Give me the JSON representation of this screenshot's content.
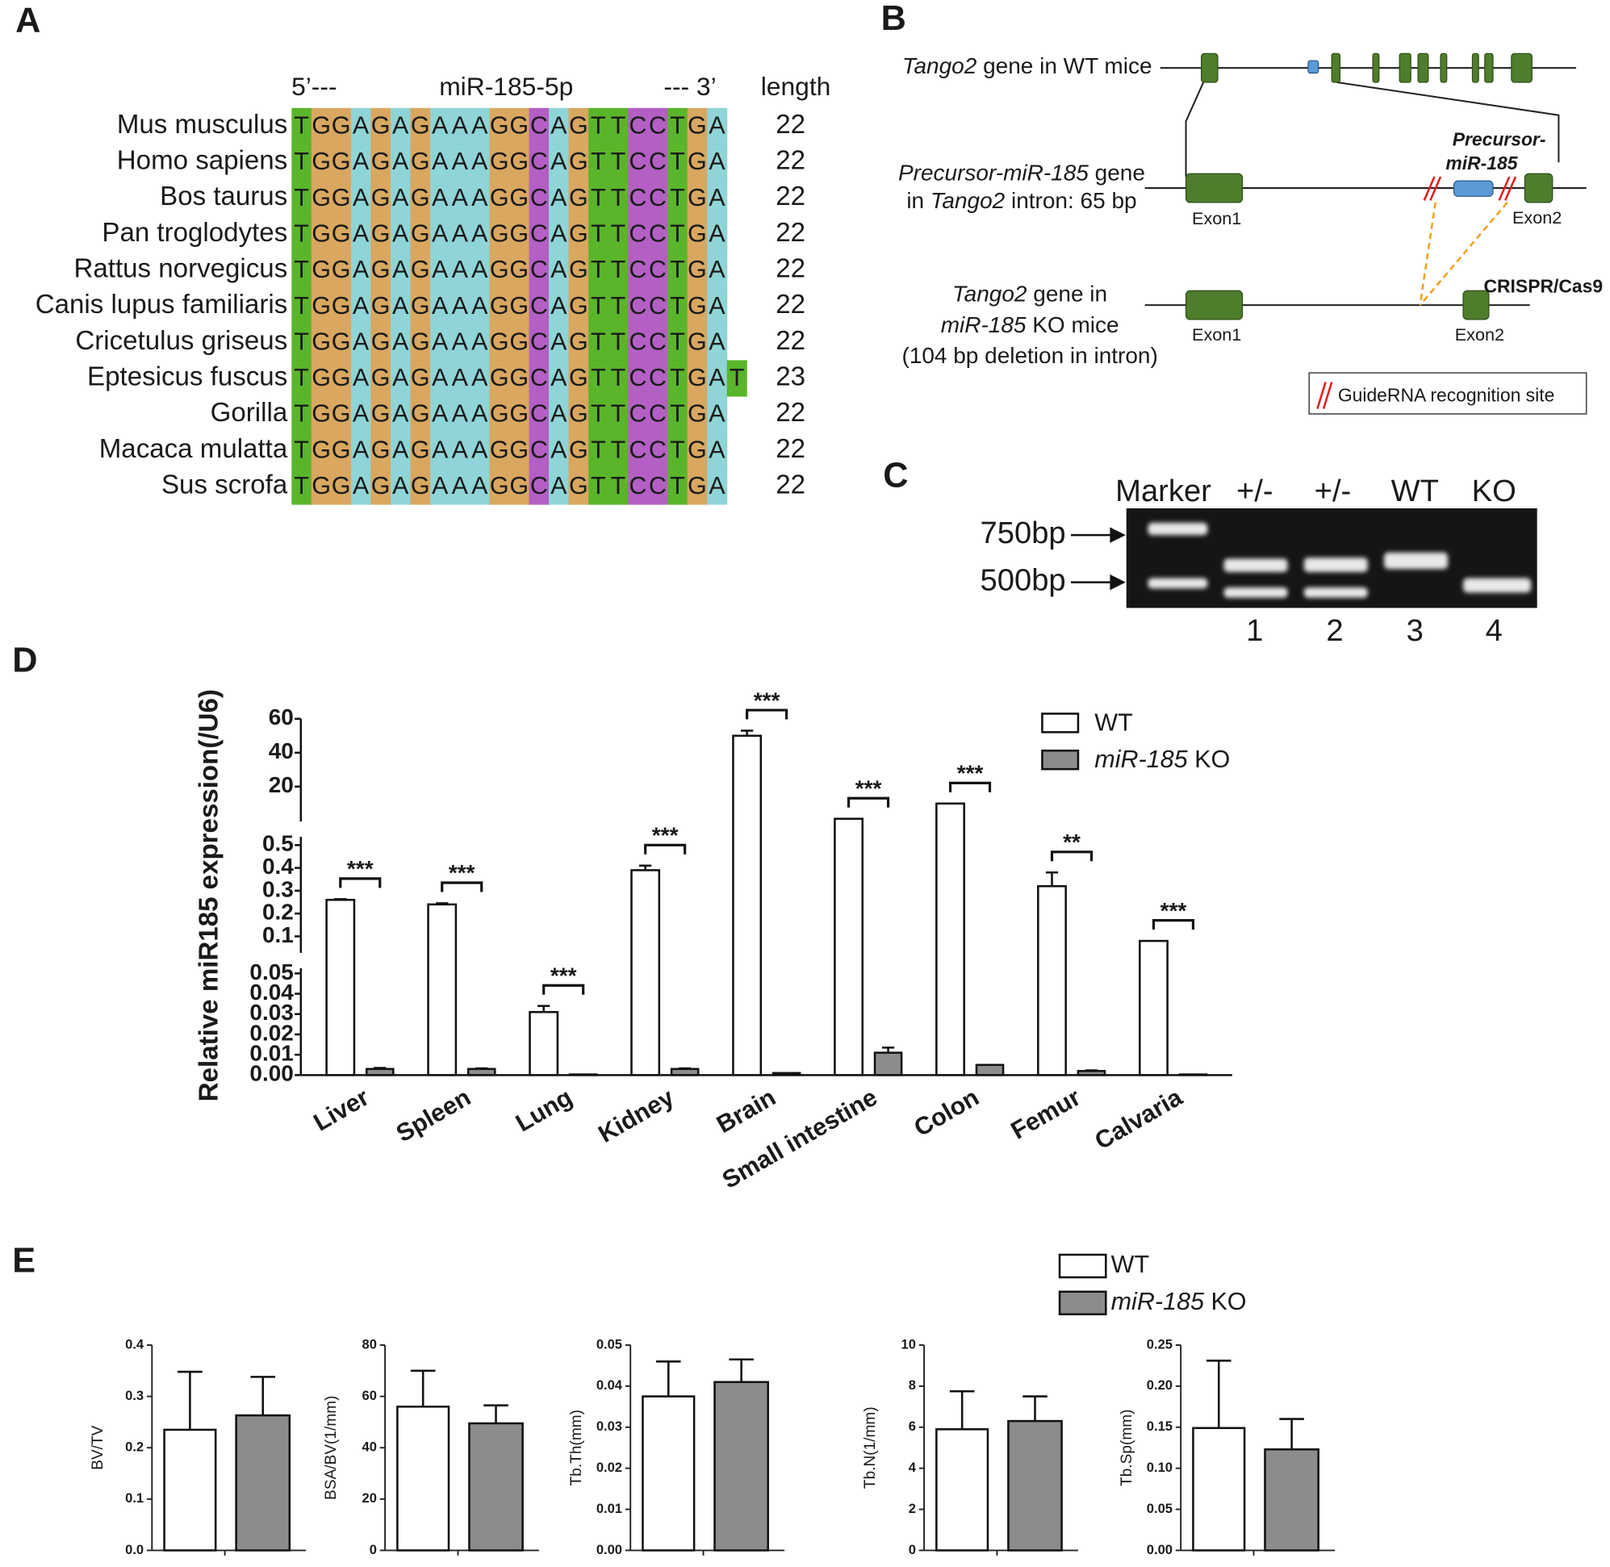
{
  "panel_labels": [
    "A",
    "B",
    "C",
    "D",
    "E"
  ],
  "alignment": {
    "header": [
      "5’---",
      "miR-185-5p",
      "--- 3’",
      "length"
    ],
    "base_colors": {
      "T": "#5ab52a",
      "G": "#d9a760",
      "A": "#8fd4d6",
      "C": "#b35fc4"
    },
    "rows": [
      {
        "species": "Mus musculus",
        "sequence": "TGGAGAGAAAGGCAGTTCCTGA",
        "length": 22
      },
      {
        "species": "Homo sapiens",
        "sequence": "TGGAGAGAAAGGCAGTTCCTGA",
        "length": 22
      },
      {
        "species": "Bos taurus",
        "sequence": "TGGAGAGAAAGGCAGTTCCTGA",
        "length": 22
      },
      {
        "species": "Pan troglodytes",
        "sequence": "TGGAGAGAAAGGCAGTTCCTGA",
        "length": 22
      },
      {
        "species": "Rattus norvegicus",
        "sequence": "TGGAGAGAAAGGCAGTTCCTGA",
        "length": 22
      },
      {
        "species": "Canis lupus familiaris",
        "sequence": "TGGAGAGAAAGGCAGTTCCTGA",
        "length": 22
      },
      {
        "species": "Cricetulus griseus",
        "sequence": "TGGAGAGAAAGGCAGTTCCTGA",
        "length": 22
      },
      {
        "species": "Eptesicus fuscus",
        "sequence": "TGGAGAGAAAGGCAGTTCCTGAT",
        "length": 23
      },
      {
        "species": "Gorilla",
        "sequence": "TGGAGAGAAAGGCAGTTCCTGA",
        "length": 22
      },
      {
        "species": "Macaca mulatta",
        "sequence": "TGGAGAGAAAGGCAGTTCCTGA",
        "length": 22
      },
      {
        "species": "Sus scrofa",
        "sequence": "TGGAGAGAAAGGCAGTTCCTGA",
        "length": 22
      }
    ]
  },
  "diagram": {
    "wt_label": [
      [
        {
          "text": "Tango2",
          "italic": true
        },
        {
          "text": " gene in WT mice"
        }
      ]
    ],
    "precursor_label": [
      [
        {
          "text": "Precursor-miR-185",
          "italic": true
        },
        {
          "text": " gene"
        }
      ],
      [
        {
          "text": "in "
        },
        {
          "text": "Tango2",
          "italic": true
        },
        {
          "text": " intron: 65 bp"
        }
      ]
    ],
    "ko_label": [
      [
        {
          "text": "Tango2",
          "italic": true
        },
        {
          "text": " gene in"
        }
      ],
      [
        {
          "text": "miR-185",
          "italic": true
        },
        {
          "text": " KO mice"
        }
      ],
      [
        {
          "text": "(104 bp deletion in intron)"
        }
      ]
    ],
    "exon_labels": [
      "Exon1",
      "Exon2",
      "Exon1",
      "Exon2"
    ],
    "precursor_tag": [
      "Precursor-",
      "miR-185"
    ],
    "method": "CRISPR/Cas9",
    "legend": "GuideRNA recognition site"
  },
  "gel": {
    "lanes": [
      "Marker",
      "+/-",
      "+/-",
      "WT",
      "KO"
    ],
    "markers": [
      "750bp",
      "500bp"
    ],
    "lane_numbers": [
      1,
      2,
      3,
      4
    ]
  },
  "chart_data": [
    {
      "type": "bar",
      "y_label": "Relative miR185 expression(/U6)",
      "categories": [
        "Liver",
        "Spleen",
        "Lung",
        "Kidney",
        "Brain",
        "Small intestine",
        "Colon",
        "Femur",
        "Calvaria"
      ],
      "series": [
        {
          "name": "WT",
          "color": "#ffffff",
          "values": [
            0.26,
            0.24,
            0.031,
            0.39,
            50,
            1,
            10,
            0.32,
            0.08
          ],
          "errors": [
            0.003,
            0.005,
            0.003,
            0.02,
            3,
            0,
            0,
            0.06,
            0
          ]
        },
        {
          "name": "miR-185 KO",
          "color": "#8c8c8c",
          "values": [
            0.003,
            0.003,
            0.0003,
            0.003,
            0.001,
            0.011,
            0.005,
            0.002,
            0.0003
          ],
          "errors": [
            0.0005,
            0.0003,
            0,
            0.0003,
            0,
            0.0025,
            0,
            0.0003,
            0
          ]
        }
      ],
      "significance": [
        "***",
        "***",
        "***",
        "***",
        "***",
        "***",
        "***",
        "**",
        "***"
      ],
      "y_segments": [
        {
          "ylim": [
            0,
            0.05
          ],
          "yticks": [
            {
              "value": 0,
              "label": "0.00"
            },
            0.01,
            0.02,
            0.03,
            0.04,
            0.05
          ]
        },
        {
          "ylim": [
            0.05,
            0.5
          ],
          "yticks": [
            0.1,
            0.2,
            0.3,
            0.4,
            0.5
          ]
        },
        {
          "ylim": [
            0,
            60
          ],
          "yticks": [
            20,
            40,
            60
          ]
        }
      ]
    },
    {
      "type": "bar",
      "series": [
        {
          "name": "WT",
          "color": "#ffffff"
        },
        {
          "name": "miR-185 KO",
          "color": "#8c8c8c"
        }
      ],
      "subplots": [
        {
          "y_label": "BV/TV",
          "ylim": [
            0,
            0.4
          ],
          "yticks": [
            {
              "value": 0,
              "label": "0.0"
            },
            0.1,
            0.2,
            0.3,
            0.4
          ],
          "values": [
            0.235,
            0.263
          ],
          "errors": [
            0.113,
            0.075
          ]
        },
        {
          "y_label": "BSA/BV(1/mm)",
          "ylim": [
            0,
            80
          ],
          "yticks": [
            0,
            20,
            40,
            60,
            80
          ],
          "values": [
            56,
            49.5
          ],
          "errors": [
            14,
            7
          ]
        },
        {
          "y_label": "Tb.Th(mm)",
          "ylim": [
            0,
            0.05
          ],
          "yticks": [
            {
              "value": 0,
              "label": "0.00"
            },
            0.01,
            0.02,
            0.03,
            0.04,
            0.05
          ],
          "values": [
            0.0375,
            0.041
          ],
          "errors": [
            0.0085,
            0.0055
          ]
        },
        {
          "y_label": "Tb.N(1/mm)",
          "ylim": [
            0,
            10
          ],
          "yticks": [
            0,
            2,
            4,
            6,
            8,
            10
          ],
          "values": [
            5.9,
            6.3
          ],
          "errors": [
            1.85,
            1.2
          ]
        },
        {
          "y_label": "Tb.Sp(mm)",
          "ylim": [
            0,
            0.25
          ],
          "yticks": [
            {
              "value": 0,
              "label": "0.00"
            },
            0.05,
            {
              "value": 0.1,
              "label": "0.10"
            },
            0.15,
            {
              "value": 0.2,
              "label": "0.20"
            },
            0.25
          ],
          "values": [
            0.149,
            0.123
          ],
          "errors": [
            0.082,
            0.037
          ]
        }
      ]
    }
  ]
}
